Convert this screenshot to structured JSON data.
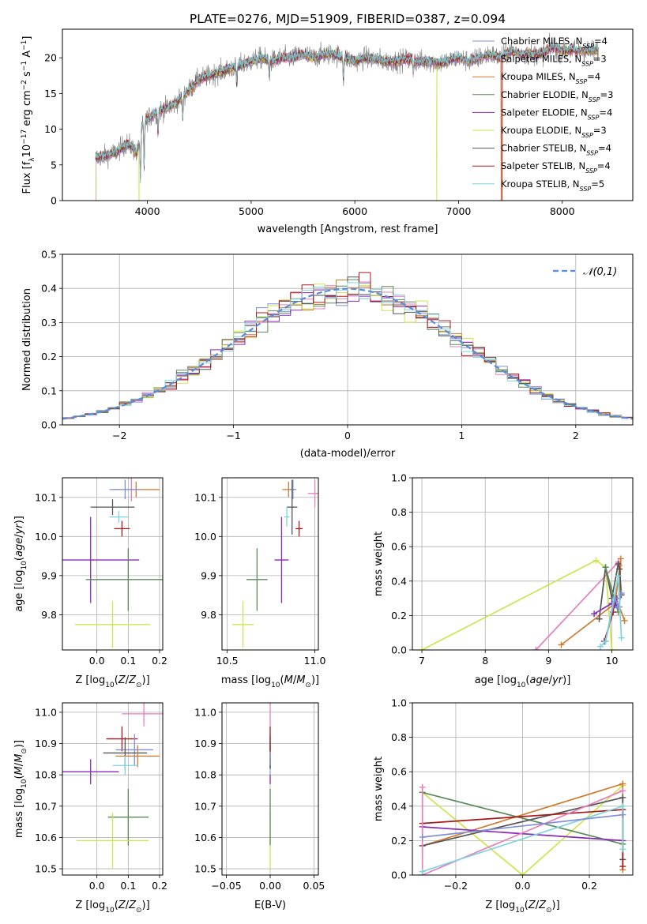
{
  "title": "PLATE=0276, MJD=51909, FIBERID=0387, z=0.094",
  "colors": {
    "Chabrier MILES": "#7f8fd8",
    "Salpeter MILES": "#e57fbf",
    "Kroupa MILES": "#d07a2e",
    "Chabrier ELODIE": "#5a8a58",
    "Salpeter ELODIE": "#8a2ab8",
    "Kroupa ELODIE": "#cfe44e",
    "Chabrier STELIB": "#555555",
    "Salpeter STELIB": "#a81818",
    "Kroupa STELIB": "#7fd3e0",
    "normal": "#5a8ad8",
    "grid": "#b0b0b0"
  },
  "chart_data": [
    {
      "type": "line",
      "id": "spectrum",
      "xlabel": "wavelength [Angstrom, rest frame]",
      "ylabel": "Flux [f_λ 10^-17 erg cm^-2 s^-1 A^-1]",
      "xlim": [
        3180,
        8680
      ],
      "ylim": [
        0,
        24
      ],
      "xticks": [
        4000,
        5000,
        6000,
        7000,
        8000
      ],
      "yticks": [
        0,
        5,
        10,
        15,
        20
      ],
      "grid": false,
      "legend_position": "top-right",
      "legend": [
        {
          "base": "Chabrier MILES, N",
          "sub": "SSP",
          "tail": "=4"
        },
        {
          "base": "Salpeter MILES, N",
          "sub": "SSP",
          "tail": "=3"
        },
        {
          "base": "Kroupa MILES, N",
          "sub": "SSP",
          "tail": "=4"
        },
        {
          "base": "Chabrier ELODIE, N",
          "sub": "SSP",
          "tail": "=3"
        },
        {
          "base": "Salpeter ELODIE, N",
          "sub": "SSP",
          "tail": "=4"
        },
        {
          "base": "Kroupa ELODIE, N",
          "sub": "SSP",
          "tail": "=3"
        },
        {
          "base": "Chabrier STELIB, N",
          "sub": "SSP",
          "tail": "=4"
        },
        {
          "base": "Salpeter STELIB, N",
          "sub": "SSP",
          "tail": "=4"
        },
        {
          "base": "Kroupa STELIB, N",
          "sub": "SSP",
          "tail": "=5"
        }
      ],
      "series_keys": [
        "Chabrier MILES",
        "Salpeter MILES",
        "Kroupa MILES",
        "Chabrier ELODIE",
        "Salpeter ELODIE",
        "Kroupa ELODIE",
        "Chabrier STELIB",
        "Salpeter STELIB",
        "Kroupa STELIB"
      ],
      "wavelength_range": [
        3500,
        8350
      ],
      "continuum": [
        [
          3500,
          6.0
        ],
        [
          3600,
          6.3
        ],
        [
          3700,
          6.8
        ],
        [
          3800,
          8.0
        ],
        [
          3850,
          7.5
        ],
        [
          3900,
          6.5
        ],
        [
          3950,
          10.5
        ],
        [
          4000,
          11.5
        ],
        [
          4100,
          12.5
        ],
        [
          4200,
          13.0
        ],
        [
          4300,
          14.0
        ],
        [
          4400,
          15.5
        ],
        [
          4500,
          17.0
        ],
        [
          4600,
          17.5
        ],
        [
          4700,
          18.0
        ],
        [
          4800,
          18.5
        ],
        [
          4900,
          19.0
        ],
        [
          5000,
          19.5
        ],
        [
          5100,
          20.0
        ],
        [
          5200,
          19.5
        ],
        [
          5300,
          20.0
        ],
        [
          5400,
          20.0
        ],
        [
          5500,
          20.5
        ],
        [
          5600,
          20.0
        ],
        [
          5700,
          20.5
        ],
        [
          5800,
          20.5
        ],
        [
          5900,
          20.0
        ],
        [
          6000,
          19.5
        ],
        [
          6100,
          20.0
        ],
        [
          6200,
          19.8
        ],
        [
          6300,
          19.5
        ],
        [
          6400,
          19.5
        ],
        [
          6500,
          19.8
        ],
        [
          6600,
          19.5
        ],
        [
          6700,
          19.5
        ],
        [
          6800,
          19.3
        ],
        [
          6900,
          19.5
        ],
        [
          7000,
          20.0
        ],
        [
          7100,
          19.5
        ],
        [
          7200,
          20.0
        ],
        [
          7300,
          20.5
        ],
        [
          7400,
          20.0
        ],
        [
          7500,
          21.0
        ],
        [
          7600,
          20.5
        ],
        [
          7700,
          20.5
        ],
        [
          7800,
          20.5
        ],
        [
          7900,
          21.5
        ],
        [
          8000,
          21.0
        ],
        [
          8100,
          21.0
        ],
        [
          8200,
          21.0
        ],
        [
          8350,
          21.0
        ]
      ],
      "absorption_features": [
        [
          3933,
          6
        ],
        [
          3968,
          6
        ],
        [
          4102,
          3
        ],
        [
          4340,
          3
        ],
        [
          4861,
          2.5
        ],
        [
          5175,
          2
        ],
        [
          5890,
          3
        ],
        [
          6563,
          1.5
        ]
      ],
      "dropouts": [
        [
          3500,
          "Kroupa MILES"
        ],
        [
          3920,
          "Kroupa ELODIE"
        ],
        [
          6790,
          "Kroupa ELODIE"
        ],
        [
          7410,
          "Kroupa MILES"
        ],
        [
          7420,
          "Salpeter STELIB"
        ]
      ]
    },
    {
      "type": "histogram",
      "id": "residuals",
      "xlabel": "(data-model)/error",
      "ylabel": "Normed distribution",
      "xlim": [
        -2.5,
        2.5
      ],
      "ylim": [
        0,
        0.5
      ],
      "xticks": [
        -2,
        -1,
        0,
        1,
        2
      ],
      "yticks": [
        0.0,
        0.1,
        0.2,
        0.3,
        0.4,
        0.5
      ],
      "grid": true,
      "bin_width": 0.1,
      "series_keys": [
        "Chabrier MILES",
        "Salpeter MILES",
        "Kroupa MILES",
        "Chabrier ELODIE",
        "Salpeter ELODIE",
        "Kroupa ELODIE",
        "Chabrier STELIB",
        "Salpeter STELIB",
        "Kroupa STELIB"
      ],
      "curve": {
        "name": "𝒩(0,1)",
        "mu": 0,
        "sigma": 1
      }
    },
    {
      "type": "scatter",
      "id": "z-age",
      "subtype": "errorbar",
      "xlabel": "Z [log10(Z/Z⊙)]",
      "ylabel": "age [log10(age/yr)]",
      "xlim": [
        -0.11,
        0.21
      ],
      "ylim": [
        9.71,
        10.15
      ],
      "xticks": [
        0.0,
        0.1,
        0.2
      ],
      "yticks": [
        9.8,
        9.9,
        10.0,
        10.1
      ],
      "grid": true,
      "points": [
        {
          "series": "Salpeter MILES",
          "x": 0.11,
          "xerr": 0.0,
          "y": 10.12,
          "yerr": 0.03
        },
        {
          "series": "Kroupa MILES",
          "x": 0.125,
          "xerr": 0.075,
          "y": 10.12,
          "yerr": 0.02
        },
        {
          "series": "Chabrier MILES",
          "x": 0.09,
          "xerr": 0.05,
          "y": 10.12,
          "yerr": 0.025
        },
        {
          "series": "Chabrier STELIB",
          "x": 0.05,
          "xerr": 0.07,
          "y": 10.075,
          "yerr": 0.02
        },
        {
          "series": "Kroupa STELIB",
          "x": 0.07,
          "xerr": 0.03,
          "y": 10.05,
          "yerr": 0.015
        },
        {
          "series": "Salpeter STELIB",
          "x": 0.08,
          "xerr": 0.025,
          "y": 10.02,
          "yerr": 0.02
        },
        {
          "series": "Salpeter ELODIE",
          "x": -0.02,
          "xerr": 0.155,
          "y": 9.94,
          "yerr": 0.11
        },
        {
          "series": "Chabrier ELODIE",
          "x": 0.1,
          "xerr": 0.135,
          "y": 9.89,
          "yerr": 0.08
        },
        {
          "series": "Kroupa ELODIE",
          "x": 0.05,
          "xerr": 0.12,
          "y": 9.775,
          "yerr": 0.06
        }
      ]
    },
    {
      "type": "scatter",
      "id": "mass-age",
      "subtype": "errorbar",
      "xlabel": "mass [log10(M/M⊙)]",
      "ylabel": "",
      "xlim": [
        10.47,
        11.02
      ],
      "ylim": [
        9.71,
        10.15
      ],
      "xticks": [
        10.5,
        11.0
      ],
      "yticks": [
        9.8,
        9.9,
        10.0,
        10.1
      ],
      "grid": true,
      "points": [
        {
          "series": "Kroupa MILES",
          "x": 10.85,
          "xerr": 0.035,
          "y": 10.12,
          "yerr": 0.02
        },
        {
          "series": "Chabrier MILES",
          "x": 10.875,
          "xerr": 0.02,
          "y": 10.12,
          "yerr": 0.025
        },
        {
          "series": "Salpeter MILES",
          "x": 11.0,
          "xerr": 0.04,
          "y": 10.11,
          "yerr": 0.035
        },
        {
          "series": "Chabrier STELIB",
          "x": 10.87,
          "xerr": 0.03,
          "y": 10.075,
          "yerr": 0.07
        },
        {
          "series": "Kroupa STELIB",
          "x": 10.84,
          "xerr": 0.015,
          "y": 10.05,
          "yerr": 0.025
        },
        {
          "series": "Salpeter STELIB",
          "x": 10.91,
          "xerr": 0.02,
          "y": 10.02,
          "yerr": 0.02
        },
        {
          "series": "Salpeter ELODIE",
          "x": 10.81,
          "xerr": 0.04,
          "y": 9.94,
          "yerr": 0.11
        },
        {
          "series": "Chabrier ELODIE",
          "x": 10.67,
          "xerr": 0.06,
          "y": 9.89,
          "yerr": 0.08
        },
        {
          "series": "Kroupa ELODIE",
          "x": 10.59,
          "xerr": 0.06,
          "y": 9.775,
          "yerr": 0.06
        }
      ]
    },
    {
      "type": "line",
      "id": "age-massweight",
      "xlabel": "age [log10(age/yr)]",
      "ylabel": "mass weight",
      "xlim": [
        6.85,
        10.33
      ],
      "ylim": [
        0,
        1
      ],
      "xticks": [
        7,
        8,
        9,
        10
      ],
      "yticks": [
        0.0,
        0.2,
        0.4,
        0.6,
        0.8,
        1.0
      ],
      "grid": true,
      "series": [
        {
          "name": "Kroupa ELODIE",
          "x": [
            7.0,
            9.75,
            9.9,
            10.0
          ],
          "y": [
            0.0,
            0.52,
            0.48,
            0.0
          ]
        },
        {
          "name": "Salpeter MILES",
          "x": [
            8.8,
            10.1,
            10.12
          ],
          "y": [
            0.0,
            0.51,
            0.49
          ]
        },
        {
          "name": "Kroupa MILES",
          "x": [
            9.2,
            10.05,
            10.14,
            10.12,
            10.2
          ],
          "y": [
            0.03,
            0.27,
            0.53,
            0.25,
            0.17
          ]
        },
        {
          "name": "Chabrier STELIB",
          "x": [
            9.8,
            9.9,
            10.0,
            10.1,
            10.12,
            10.15
          ],
          "y": [
            0.18,
            0.48,
            0.3,
            0.5,
            0.47,
            0.32
          ]
        },
        {
          "name": "Chabrier ELODIE",
          "x": [
            9.9,
            10.05,
            10.1
          ],
          "y": [
            0.48,
            0.28,
            0.22
          ]
        },
        {
          "name": "Salpeter ELODIE",
          "x": [
            9.72,
            10.0,
            10.05,
            10.08
          ],
          "y": [
            0.21,
            0.27,
            0.26,
            0.3
          ]
        },
        {
          "name": "Salpeter STELIB",
          "x": [
            9.88,
            10.02,
            10.05
          ],
          "y": [
            0.05,
            0.22,
            0.3
          ]
        },
        {
          "name": "Chabrier MILES",
          "x": [
            9.9,
            10.05,
            10.1,
            10.15
          ],
          "y": [
            0.05,
            0.3,
            0.25,
            0.33
          ]
        },
        {
          "name": "Kroupa STELIB",
          "x": [
            9.82,
            9.9,
            10.1,
            10.15
          ],
          "y": [
            0.02,
            0.05,
            0.43,
            0.07
          ]
        }
      ]
    },
    {
      "type": "scatter",
      "id": "z-mass",
      "subtype": "errorbar",
      "xlabel": "Z [log10(Z/Z⊙)]",
      "ylabel": "mass [log10(M/M⊙)]",
      "xlim": [
        -0.11,
        0.21
      ],
      "ylim": [
        10.48,
        11.03
      ],
      "xticks": [
        0.0,
        0.1,
        0.2
      ],
      "yticks": [
        10.5,
        10.6,
        10.7,
        10.8,
        10.9,
        11.0
      ],
      "grid": true,
      "points": [
        {
          "series": "Salpeter MILES",
          "x": 0.15,
          "xerr": 0.07,
          "y": 10.995,
          "yerr": 0.04
        },
        {
          "series": "Salpeter STELIB",
          "x": 0.08,
          "xerr": 0.05,
          "y": 10.915,
          "yerr": 0.04
        },
        {
          "series": "Chabrier MILES",
          "x": 0.12,
          "xerr": 0.06,
          "y": 10.88,
          "yerr": 0.05
        },
        {
          "series": "Chabrier STELIB",
          "x": 0.09,
          "xerr": 0.07,
          "y": 10.87,
          "yerr": 0.05
        },
        {
          "series": "Kroupa MILES",
          "x": 0.13,
          "xerr": 0.07,
          "y": 10.86,
          "yerr": 0.035
        },
        {
          "series": "Kroupa STELIB",
          "x": 0.09,
          "xerr": 0.04,
          "y": 10.83,
          "yerr": 0.03
        },
        {
          "series": "Salpeter ELODIE",
          "x": -0.02,
          "xerr": 0.09,
          "y": 10.81,
          "yerr": 0.04
        },
        {
          "series": "Chabrier ELODIE",
          "x": 0.1,
          "xerr": 0.065,
          "y": 10.665,
          "yerr": 0.09
        },
        {
          "series": "Kroupa ELODIE",
          "x": 0.05,
          "xerr": 0.115,
          "y": 10.59,
          "yerr": 0.09
        }
      ]
    },
    {
      "type": "scatter",
      "id": "ebv-mass",
      "subtype": "errorbar",
      "xlabel": "E(B-V)",
      "ylabel": "",
      "xlim": [
        -0.055,
        0.055
      ],
      "ylim": [
        10.48,
        11.03
      ],
      "xticks": [
        -0.05,
        0.0,
        0.05
      ],
      "yticks": [
        10.5,
        10.6,
        10.7,
        10.8,
        10.9,
        11.0
      ],
      "grid": true,
      "points": [
        {
          "series": "Kroupa ELODIE",
          "x": 0.0,
          "xerr": 0.0,
          "y": 10.59,
          "yerr": 0.09
        },
        {
          "series": "Chabrier ELODIE",
          "x": 0.0,
          "xerr": 0.0,
          "y": 10.665,
          "yerr": 0.09
        },
        {
          "series": "Salpeter ELODIE",
          "x": 0.0,
          "xerr": 0.0,
          "y": 10.81,
          "yerr": 0.04
        },
        {
          "series": "Kroupa STELIB",
          "x": 0.0,
          "xerr": 0.0,
          "y": 10.83,
          "yerr": 0.03
        },
        {
          "series": "Kroupa MILES",
          "x": 0.0,
          "xerr": 0.0,
          "y": 10.86,
          "yerr": 0.035
        },
        {
          "series": "Chabrier STELIB",
          "x": 0.0,
          "xerr": 0.0,
          "y": 10.87,
          "yerr": 0.05
        },
        {
          "series": "Chabrier MILES",
          "x": 0.0,
          "xerr": 0.0,
          "y": 10.88,
          "yerr": 0.05
        },
        {
          "series": "Salpeter STELIB",
          "x": 0.0,
          "xerr": 0.0,
          "y": 10.915,
          "yerr": 0.04
        },
        {
          "series": "Salpeter MILES",
          "x": 0.0,
          "xerr": 0.0,
          "y": 10.995,
          "yerr": 0.04
        }
      ]
    },
    {
      "type": "line",
      "id": "z-massweight",
      "xlabel": "Z [log10(Z/Z⊙)]",
      "ylabel": "mass weight",
      "xlim": [
        -0.33,
        0.33
      ],
      "ylim": [
        0,
        1
      ],
      "xticks": [
        -0.2,
        0.0,
        0.2
      ],
      "yticks": [
        0.0,
        0.2,
        0.4,
        0.6,
        0.8,
        1.0
      ],
      "grid": true,
      "series": [
        {
          "name": "Kroupa ELODIE",
          "x": [
            -0.3,
            0.0,
            0.3
          ],
          "y": [
            0.48,
            0.0,
            0.52
          ]
        },
        {
          "name": "Chabrier ELODIE",
          "x": [
            -0.3,
            0.3
          ],
          "y": [
            0.48,
            0.18
          ]
        },
        {
          "name": "Kroupa MILES",
          "x": [
            -0.3,
            0.3,
            0.3
          ],
          "y": [
            0.17,
            0.53,
            0.03
          ]
        },
        {
          "name": "Chabrier STELIB",
          "x": [
            -0.3,
            0.3,
            0.3
          ],
          "y": [
            0.17,
            0.45,
            0.09
          ]
        },
        {
          "name": "Salpeter STELIB",
          "x": [
            -0.3,
            0.3,
            0.3
          ],
          "y": [
            0.3,
            0.38,
            0.05
          ]
        },
        {
          "name": "Salpeter ELODIE",
          "x": [
            -0.3,
            0.3
          ],
          "y": [
            0.28,
            0.2
          ]
        },
        {
          "name": "Salpeter MILES",
          "x": [
            -0.3,
            -0.3,
            0.3
          ],
          "y": [
            0.51,
            0.0,
            0.49
          ]
        },
        {
          "name": "Kroupa STELIB",
          "x": [
            -0.3,
            0.3,
            0.3
          ],
          "y": [
            0.02,
            0.4,
            0.15
          ]
        },
        {
          "name": "Chabrier MILES",
          "x": [
            -0.3,
            0.3
          ],
          "y": [
            0.22,
            0.35
          ]
        }
      ]
    }
  ]
}
